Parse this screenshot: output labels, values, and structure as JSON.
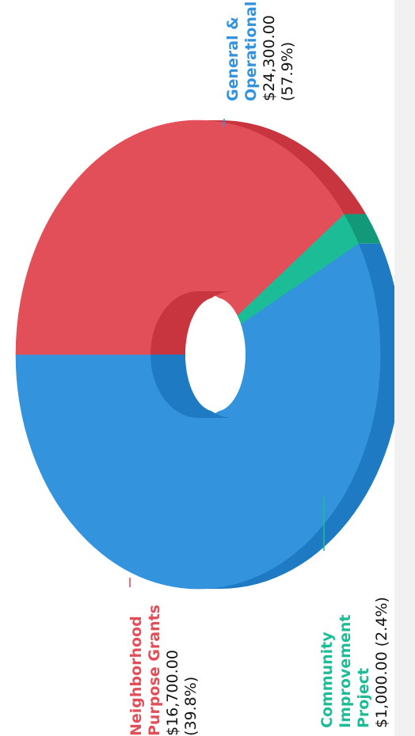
{
  "colors": {
    "general": "#3393dd",
    "general_side": "#1e7bc3",
    "community": "#1cbc96",
    "community_side": "#12997a",
    "neighborhood": "#e24f59",
    "neighborhood_side": "#c8353f",
    "page_strip": "#f1f1f1"
  },
  "chart_data": {
    "type": "pie",
    "style": "3d-donut",
    "rotation": "rotated 90deg clockwise",
    "slices": [
      {
        "name": "General & Operational",
        "value": 24300.0,
        "value_label": "$24,300.00",
        "percent_label": "(57.9%)"
      },
      {
        "name": "Community Improvement Project",
        "value": 1000.0,
        "value_label": "$1,000.00",
        "percent_label": "(2.4%)"
      },
      {
        "name": "Neighborhood Purpose Grants",
        "value": 16700.0,
        "value_label": "$16,700.00",
        "percent_label": "(39.8%)"
      }
    ],
    "labels": {
      "general": {
        "lines": [
          "General &",
          "Operational",
          "$24,300.00",
          "(57.9%)"
        ]
      },
      "community": {
        "lines": [
          "Community",
          "Improvement",
          "Project",
          "$1,000.00 (2.4%)"
        ]
      },
      "neighborhood": {
        "lines": [
          "Neighborhood",
          "Purpose Grants",
          "$16,700.00",
          "(39.8%)"
        ]
      }
    }
  }
}
